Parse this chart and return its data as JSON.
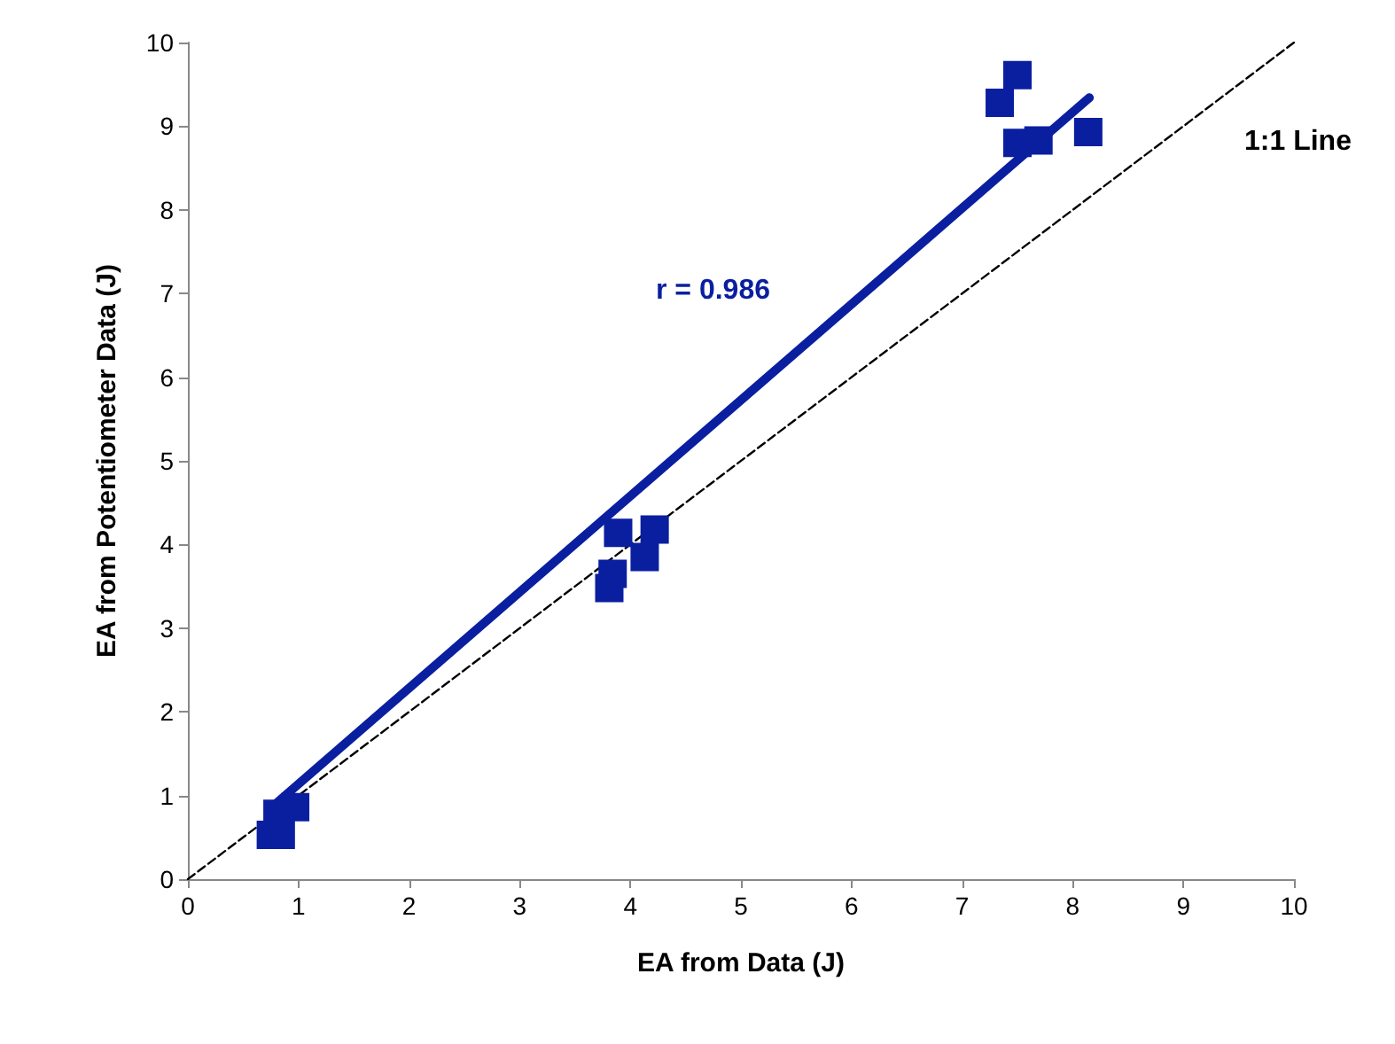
{
  "chart_data": {
    "type": "scatter",
    "xlabel": "EA from Data (J)",
    "ylabel": "EA from Potentiometer Data (J)",
    "xlim": [
      0,
      10
    ],
    "ylim": [
      0,
      10
    ],
    "xticks": [
      0,
      1,
      2,
      3,
      4,
      5,
      6,
      7,
      8,
      9,
      10
    ],
    "yticks": [
      0,
      1,
      2,
      3,
      4,
      5,
      6,
      7,
      8,
      9,
      10
    ],
    "grid": false,
    "marker": "square",
    "series": [
      {
        "type": "line",
        "line_style": "dashed",
        "marker": "none",
        "color": "#000000",
        "x": [
          0,
          10
        ],
        "values": [
          0,
          10
        ]
      },
      {
        "type": "line",
        "line_style": "solid",
        "marker": "none",
        "color": "#0a1fa0",
        "x": [
          0.75,
          8.15
        ],
        "values": [
          0.85,
          9.34
        ]
      },
      {
        "color": "#0a1fa0",
        "x": [
          7.5,
          7.34,
          7.5,
          7.69,
          8.14,
          3.89,
          4.22,
          4.13,
          3.84,
          3.81,
          0.75,
          0.84,
          0.97,
          0.81
        ],
        "values": [
          9.61,
          9.28,
          8.8,
          8.83,
          8.93,
          4.14,
          4.18,
          3.85,
          3.65,
          3.48,
          0.53,
          0.53,
          0.86,
          0.78
        ]
      }
    ],
    "annotations": [
      "r = 0.986",
      "1:1 Line"
    ]
  }
}
